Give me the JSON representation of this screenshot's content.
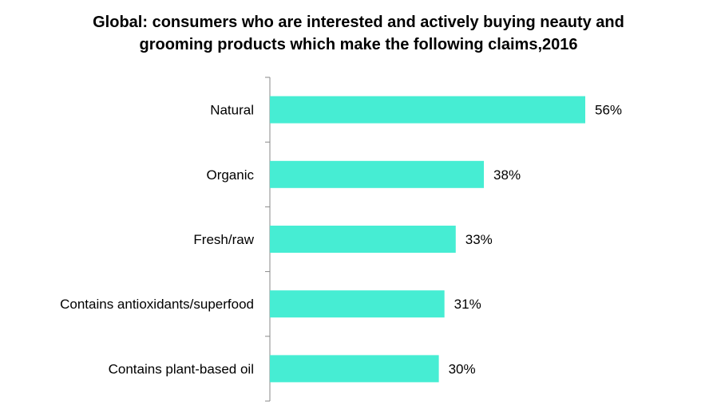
{
  "chart_data": {
    "type": "bar",
    "orientation": "horizontal",
    "title_lines": [
      "Global: consumers who are interested and actively buying neauty and",
      "grooming products which make the following claims,2016"
    ],
    "categories": [
      "Natural",
      "Organic",
      "Fresh/raw",
      "Contains antioxidants/superfood",
      "Contains plant-based oil"
    ],
    "values": [
      56,
      38,
      33,
      31,
      30
    ],
    "value_labels": [
      "56%",
      "38%",
      "33%",
      "31%",
      "30%"
    ],
    "xlim": [
      0,
      60
    ],
    "bar_color": "#46EDD3",
    "axis_color": "#898989",
    "grid": false,
    "legend": "none"
  }
}
